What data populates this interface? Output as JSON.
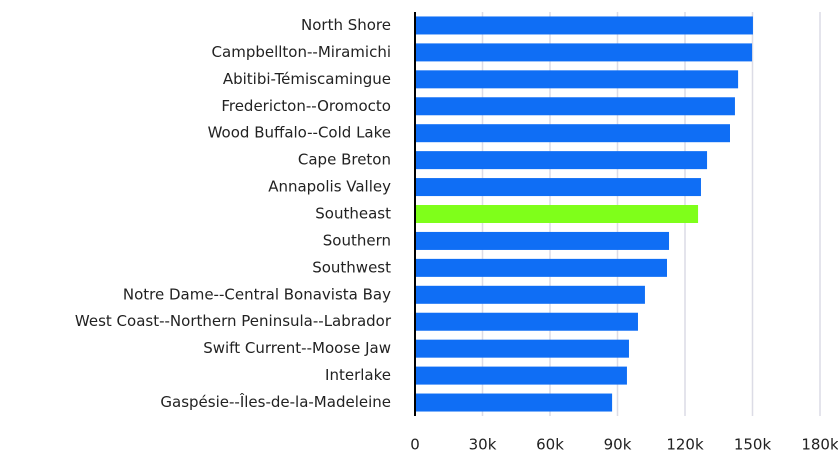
{
  "chart_data": {
    "type": "barh",
    "categories": [
      "North Shore",
      "Campbellton--Miramichi",
      "Abitibi-Témiscamingue",
      "Fredericton--Oromocto",
      "Wood Buffalo--Cold Lake",
      "Cape Breton",
      "Annapolis Valley",
      "Southeast",
      "Southern",
      "Southwest",
      "Notre Dame--Central Bonavista Bay",
      "West Coast--Northern Peninsula--Labrador",
      "Swift Current--Moose Jaw",
      "Interlake",
      "Gaspésie--Îles-de-la-Madeleine"
    ],
    "values": [
      150200,
      149800,
      143600,
      142200,
      140000,
      129800,
      127100,
      125800,
      112900,
      112000,
      102200,
      99100,
      95100,
      94200,
      87600
    ],
    "colors": [
      "#0f6ef5",
      "#0f6ef5",
      "#0f6ef5",
      "#0f6ef5",
      "#0f6ef5",
      "#0f6ef5",
      "#0f6ef5",
      "#7fff1a",
      "#0f6ef5",
      "#0f6ef5",
      "#0f6ef5",
      "#0f6ef5",
      "#0f6ef5",
      "#0f6ef5",
      "#0f6ef5"
    ],
    "xlim": [
      0,
      180000
    ],
    "xticks": [
      0,
      {
        "value": 30000,
        "label": "30k"
      },
      {
        "value": 60000,
        "label": "60k"
      },
      {
        "value": 90000,
        "label": "90k"
      },
      {
        "value": 120000,
        "label": "120k"
      },
      {
        "value": 150000,
        "label": "150k"
      },
      {
        "value": 180000,
        "label": "180k"
      }
    ],
    "grid": true
  }
}
